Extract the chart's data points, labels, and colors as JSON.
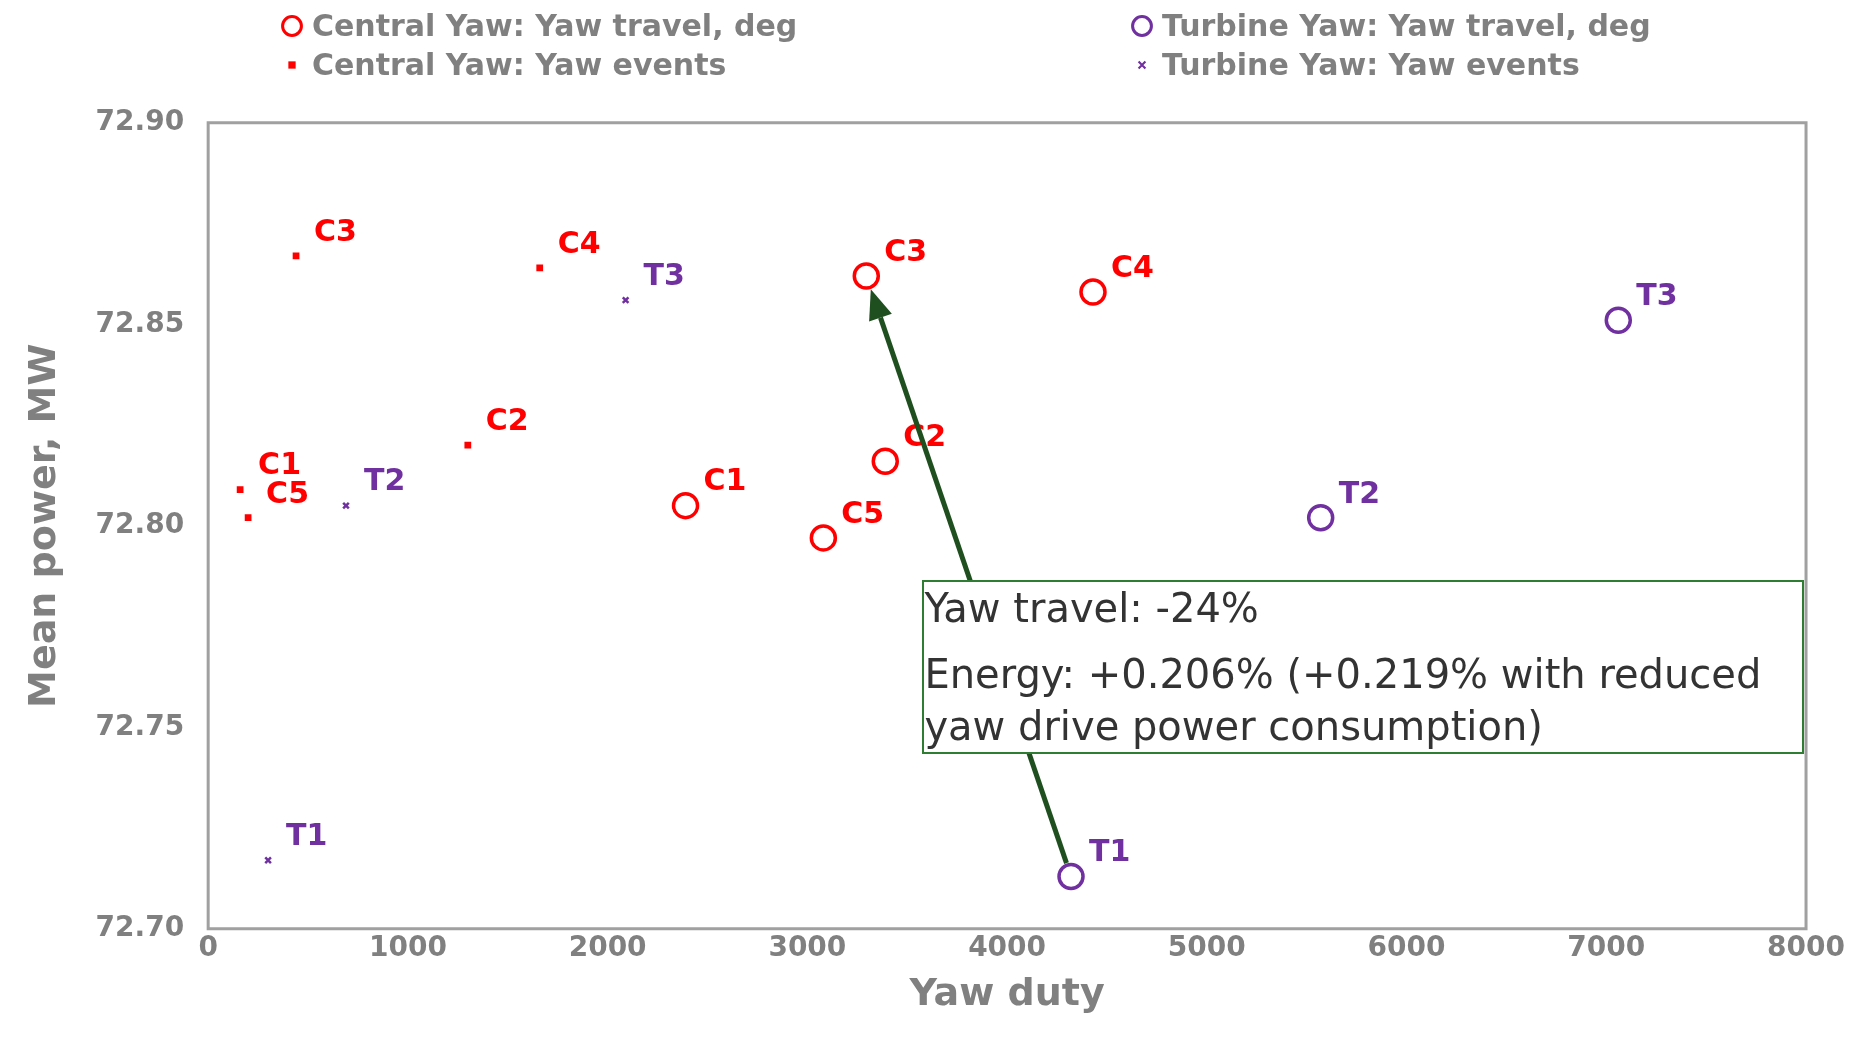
{
  "chart_data": {
    "type": "scatter",
    "xlabel": "Yaw duty",
    "ylabel": "Mean power, MW",
    "xlim": [
      0,
      8000
    ],
    "xticks": [
      0,
      1000,
      2000,
      3000,
      4000,
      5000,
      6000,
      7000,
      8000
    ],
    "ylim": [
      72.7,
      72.9
    ],
    "yticks": [
      {
        "value": 72.7,
        "label": "72.70"
      },
      {
        "value": 72.75,
        "label": "72.75"
      },
      {
        "value": 72.8,
        "label": "72.80"
      },
      {
        "value": 72.85,
        "label": "72.85"
      },
      {
        "value": 72.9,
        "label": "72.90"
      }
    ],
    "grid": false,
    "legend": "top",
    "series": [
      {
        "name": "Central Yaw: Yaw travel, deg",
        "color": "#ff0000",
        "marker": "circle",
        "x": [
          2390,
          3390,
          3295,
          4430,
          3080
        ],
        "values": [
          72.805,
          72.816,
          72.862,
          72.858,
          72.797
        ],
        "value_labels": [
          "C1",
          "C2",
          "C3",
          "C4",
          "C5"
        ]
      },
      {
        "name": "Turbine Yaw: Yaw travel, deg",
        "color": "#7030a0",
        "marker": "circle",
        "x": [
          4320,
          5570,
          7060
        ],
        "values": [
          72.713,
          72.802,
          72.851
        ],
        "value_labels": [
          "T1",
          "T2",
          "T3"
        ]
      },
      {
        "name": "Central Yaw: Yaw events",
        "color": "#ff0000",
        "marker": "square",
        "x": [
          160,
          1300,
          440,
          1660,
          200
        ],
        "values": [
          72.809,
          72.82,
          72.867,
          72.864,
          72.802
        ],
        "value_labels": [
          "C1",
          "C2",
          "C3",
          "C4",
          "C5"
        ]
      },
      {
        "name": "Turbine Yaw: Yaw events",
        "color": "#7030a0",
        "marker": "cross",
        "x": [
          300,
          690,
          2090
        ],
        "values": [
          72.717,
          72.805,
          72.856
        ],
        "value_labels": [
          "T1",
          "T2",
          "T3"
        ]
      }
    ],
    "annotations": [
      "Yaw travel: -24%",
      "Energy: +0.206% (+0.219% with reduced yaw drive power consumption)"
    ]
  }
}
